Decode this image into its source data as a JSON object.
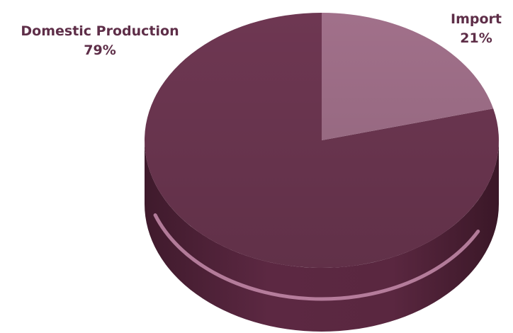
{
  "chart_data": {
    "type": "pie",
    "style": "3d",
    "slices": [
      {
        "label": "Domestic Production",
        "value": 79,
        "value_label": "79%",
        "color": "#6e3752"
      },
      {
        "label": "Import",
        "value": 21,
        "value_label": "21%",
        "color": "#a1708a"
      }
    ],
    "title": "",
    "legend": "none",
    "side_color": "#5a2740",
    "highlight_color": "#c58cab"
  }
}
